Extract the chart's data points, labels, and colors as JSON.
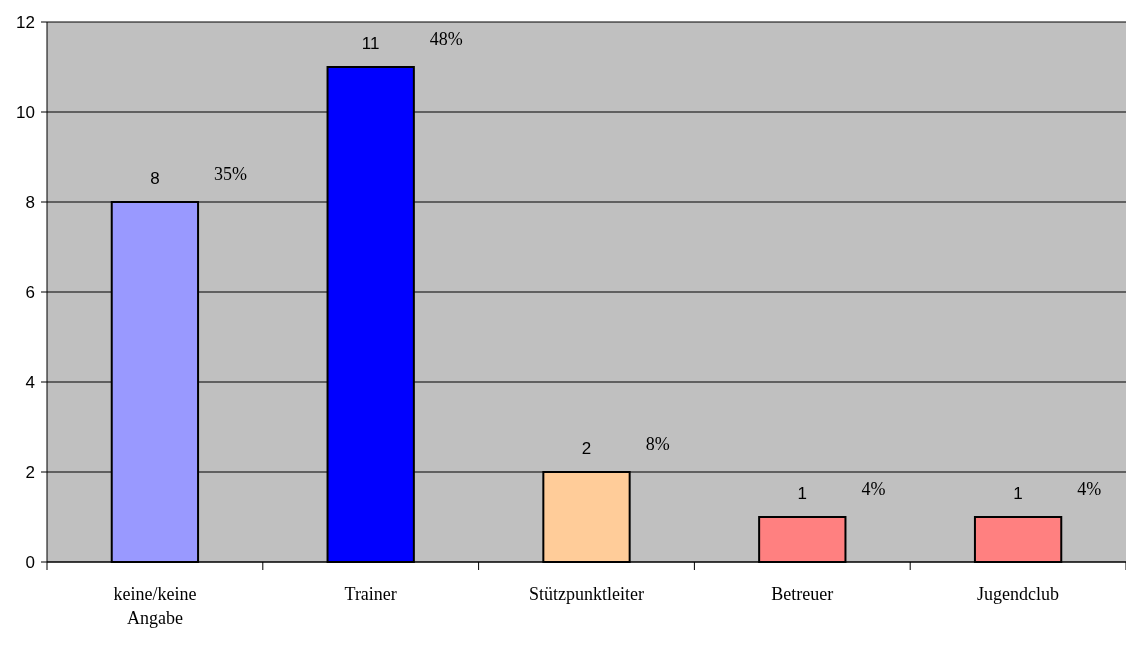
{
  "chart_data": {
    "type": "bar",
    "categories": [
      "keine/keine Angabe",
      "Trainer",
      "Stützpunktleiter",
      "Betreuer",
      "Jugendclub"
    ],
    "values": [
      8,
      11,
      2,
      1,
      1
    ],
    "colors": [
      "#9999ff",
      "#0000ff",
      "#ffcc99",
      "#ff8080",
      "#ff8080"
    ],
    "ylim": [
      0,
      12
    ],
    "yticks": [
      0,
      2,
      4,
      6,
      8,
      10,
      12
    ],
    "grid": "y",
    "data_labels": true,
    "annotations": [
      "35%",
      "48%",
      "8%",
      "4%",
      "4%"
    ]
  }
}
